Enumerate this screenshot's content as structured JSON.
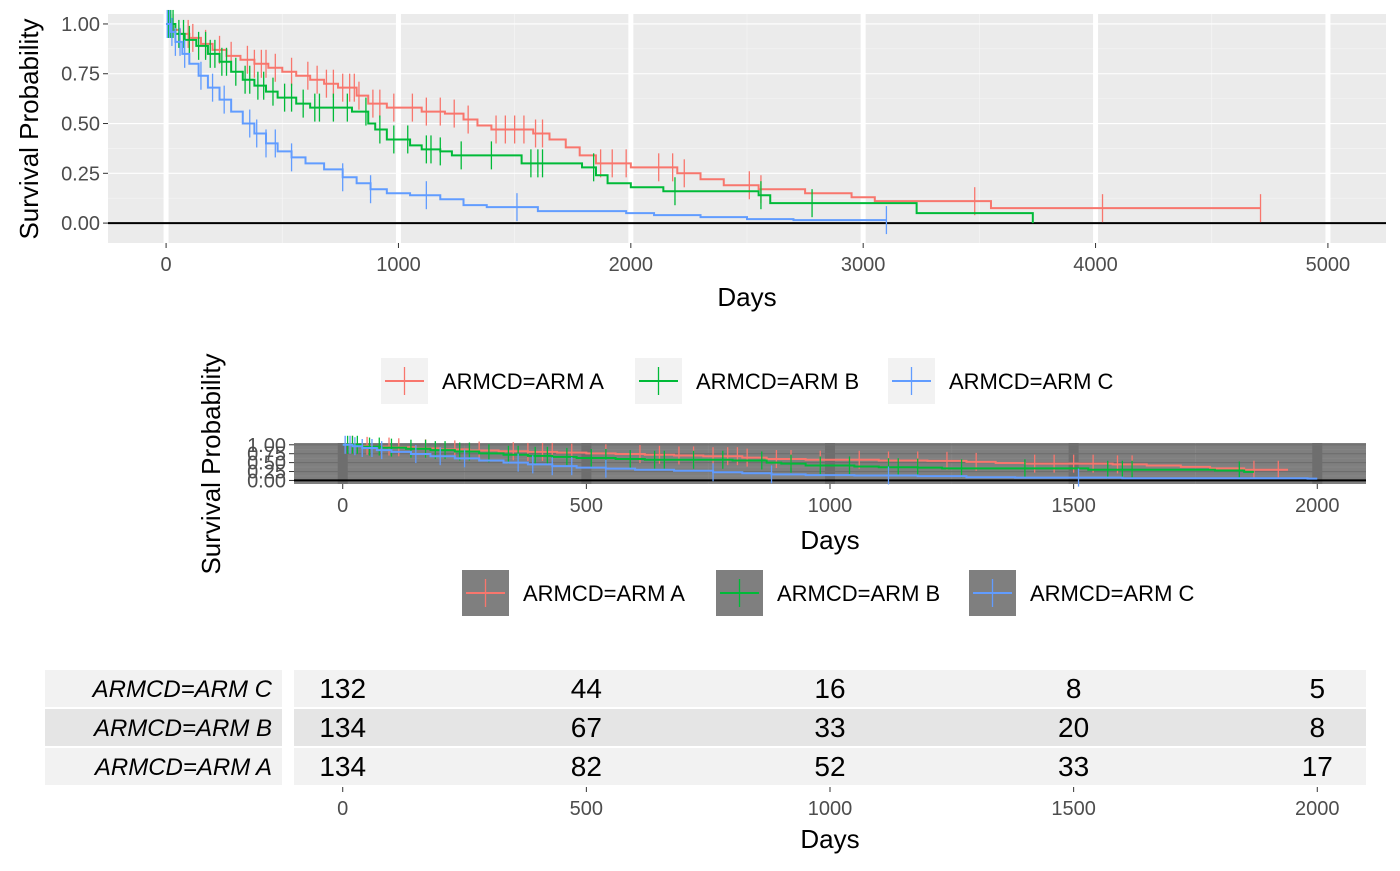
{
  "chart_data": [
    {
      "type": "line",
      "subtype": "kaplan-meier",
      "xlabel": "Days",
      "ylabel": "Survival Probability",
      "xlim": [
        -250,
        5250
      ],
      "ylim": [
        -0.1,
        1.05
      ],
      "xticks": [
        0,
        1000,
        2000,
        3000,
        4000,
        5000
      ],
      "yticks": [
        0.0,
        0.25,
        0.5,
        0.75,
        1.0
      ],
      "ytick_labels": [
        "0.00",
        "0.25",
        "0.50",
        "0.75",
        "1.00"
      ],
      "grid": true,
      "hline": 0,
      "series": [
        {
          "name": "ARMCD=ARM A",
          "color": "#F8766D",
          "steps": [
            [
              0,
              1.0
            ],
            [
              30,
              0.97
            ],
            [
              60,
              0.95
            ],
            [
              100,
              0.93
            ],
            [
              150,
              0.9
            ],
            [
              200,
              0.87
            ],
            [
              260,
              0.84
            ],
            [
              320,
              0.82
            ],
            [
              380,
              0.8
            ],
            [
              440,
              0.78
            ],
            [
              500,
              0.76
            ],
            [
              560,
              0.74
            ],
            [
              620,
              0.72
            ],
            [
              680,
              0.7
            ],
            [
              740,
              0.68
            ],
            [
              820,
              0.64
            ],
            [
              870,
              0.6
            ],
            [
              950,
              0.58
            ],
            [
              1100,
              0.56
            ],
            [
              1200,
              0.55
            ],
            [
              1280,
              0.52
            ],
            [
              1340,
              0.49
            ],
            [
              1400,
              0.47
            ],
            [
              1580,
              0.45
            ],
            [
              1650,
              0.42
            ],
            [
              1720,
              0.38
            ],
            [
              1780,
              0.34
            ],
            [
              1850,
              0.3
            ],
            [
              2000,
              0.28
            ],
            [
              2200,
              0.25
            ],
            [
              2300,
              0.22
            ],
            [
              2400,
              0.19
            ],
            [
              2550,
              0.17
            ],
            [
              2750,
              0.15
            ],
            [
              2950,
              0.13
            ],
            [
              3050,
              0.11
            ],
            [
              3550,
              0.075
            ],
            [
              4710,
              0.075
            ]
          ],
          "censor_x": [
            95,
            115,
            170,
            230,
            280,
            350,
            380,
            410,
            430,
            470,
            540,
            610,
            650,
            690,
            720,
            760,
            790,
            810,
            830,
            890,
            920,
            980,
            1060,
            1120,
            1180,
            1240,
            1300,
            1420,
            1460,
            1500,
            1540,
            1590,
            1620,
            1870,
            1920,
            1980,
            2120,
            2180,
            2230,
            2510,
            2560,
            3480,
            4030,
            4710
          ]
        },
        {
          "name": "ARMCD=ARM B",
          "color": "#00BA38",
          "steps": [
            [
              0,
              1.0
            ],
            [
              40,
              0.95
            ],
            [
              80,
              0.92
            ],
            [
              130,
              0.89
            ],
            [
              180,
              0.85
            ],
            [
              230,
              0.81
            ],
            [
              280,
              0.76
            ],
            [
              330,
              0.72
            ],
            [
              380,
              0.69
            ],
            [
              430,
              0.66
            ],
            [
              480,
              0.63
            ],
            [
              560,
              0.6
            ],
            [
              620,
              0.58
            ],
            [
              800,
              0.56
            ],
            [
              870,
              0.5
            ],
            [
              900,
              0.47
            ],
            [
              950,
              0.42
            ],
            [
              1050,
              0.39
            ],
            [
              1100,
              0.37
            ],
            [
              1180,
              0.36
            ],
            [
              1230,
              0.34
            ],
            [
              1530,
              0.3
            ],
            [
              1790,
              0.28
            ],
            [
              1850,
              0.24
            ],
            [
              1900,
              0.2
            ],
            [
              2000,
              0.18
            ],
            [
              2140,
              0.16
            ],
            [
              2550,
              0.14
            ],
            [
              2600,
              0.1
            ],
            [
              3230,
              0.05
            ],
            [
              3730,
              0.05
            ],
            [
              3730,
              0.0
            ]
          ],
          "censor_x": [
            10,
            20,
            30,
            55,
            75,
            100,
            140,
            170,
            190,
            210,
            240,
            260,
            300,
            340,
            360,
            395,
            420,
            460,
            510,
            540,
            590,
            640,
            660,
            720,
            780,
            860,
            920,
            980,
            1040,
            1120,
            1140,
            1180,
            1270,
            1400,
            1570,
            1600,
            1620,
            1840,
            2190,
            2560,
            2780
          ]
        },
        {
          "name": "ARMCD=ARM C",
          "color": "#619CFF",
          "steps": [
            [
              0,
              1.0
            ],
            [
              20,
              0.96
            ],
            [
              40,
              0.91
            ],
            [
              70,
              0.85
            ],
            [
              100,
              0.8
            ],
            [
              140,
              0.74
            ],
            [
              180,
              0.68
            ],
            [
              230,
              0.62
            ],
            [
              280,
              0.56
            ],
            [
              330,
              0.5
            ],
            [
              380,
              0.45
            ],
            [
              430,
              0.4
            ],
            [
              480,
              0.36
            ],
            [
              540,
              0.33
            ],
            [
              600,
              0.3
            ],
            [
              680,
              0.27
            ],
            [
              760,
              0.23
            ],
            [
              820,
              0.2
            ],
            [
              880,
              0.17
            ],
            [
              950,
              0.15
            ],
            [
              1050,
              0.14
            ],
            [
              1180,
              0.12
            ],
            [
              1280,
              0.09
            ],
            [
              1380,
              0.08
            ],
            [
              1600,
              0.06
            ],
            [
              1980,
              0.05
            ],
            [
              2100,
              0.04
            ],
            [
              2300,
              0.03
            ],
            [
              2500,
              0.02
            ],
            [
              2700,
              0.015
            ],
            [
              3100,
              0.015
            ]
          ],
          "censor_x": [
            5,
            15,
            25,
            40,
            60,
            80,
            150,
            200,
            250,
            360,
            390,
            430,
            470,
            540,
            760,
            880,
            1120,
            1510,
            3100
          ]
        }
      ],
      "legend": {
        "position": "bottom",
        "labels": [
          "ARMCD=ARM A",
          "ARMCD=ARM B",
          "ARMCD=ARM C"
        ]
      }
    },
    {
      "type": "line",
      "subtype": "kaplan-meier",
      "xlabel": "Days",
      "ylabel": "Survival Probability",
      "xlim": [
        -100,
        2100
      ],
      "ylim": [
        -0.1,
        1.05
      ],
      "xticks": [
        0,
        500,
        1000,
        1500,
        2000
      ],
      "yticks": [
        0.0,
        0.25,
        0.5,
        0.75,
        1.0
      ],
      "ytick_labels": [
        "0.00",
        "0.25",
        "0.50",
        "0.75",
        "1.00"
      ],
      "grid": true,
      "hline": 0,
      "series": [
        {
          "name": "ARMCD=ARM A",
          "color": "#F8766D",
          "steps": [
            [
              0,
              1.0
            ],
            [
              30,
              0.97
            ],
            [
              60,
              0.95
            ],
            [
              100,
              0.93
            ],
            [
              150,
              0.9
            ],
            [
              200,
              0.87
            ],
            [
              260,
              0.84
            ],
            [
              320,
              0.82
            ],
            [
              380,
              0.8
            ],
            [
              440,
              0.78
            ],
            [
              500,
              0.76
            ],
            [
              560,
              0.74
            ],
            [
              620,
              0.72
            ],
            [
              680,
              0.7
            ],
            [
              740,
              0.68
            ],
            [
              820,
              0.64
            ],
            [
              870,
              0.6
            ],
            [
              950,
              0.58
            ],
            [
              1100,
              0.56
            ],
            [
              1200,
              0.55
            ],
            [
              1280,
              0.52
            ],
            [
              1340,
              0.49
            ],
            [
              1400,
              0.47
            ],
            [
              1580,
              0.45
            ],
            [
              1650,
              0.42
            ],
            [
              1720,
              0.38
            ],
            [
              1780,
              0.34
            ],
            [
              1850,
              0.3
            ],
            [
              1940,
              0.3
            ]
          ],
          "censor_x": [
            20,
            50,
            95,
            115,
            170,
            230,
            280,
            350,
            380,
            410,
            430,
            470,
            540,
            610,
            650,
            690,
            720,
            760,
            790,
            810,
            830,
            890,
            920,
            980,
            1060,
            1120,
            1180,
            1240,
            1300,
            1420,
            1460,
            1500,
            1540,
            1590,
            1620,
            1870,
            1920
          ]
        },
        {
          "name": "ARMCD=ARM B",
          "color": "#00BA38",
          "steps": [
            [
              0,
              1.0
            ],
            [
              40,
              0.95
            ],
            [
              80,
              0.92
            ],
            [
              130,
              0.89
            ],
            [
              180,
              0.85
            ],
            [
              230,
              0.81
            ],
            [
              280,
              0.76
            ],
            [
              330,
              0.72
            ],
            [
              380,
              0.69
            ],
            [
              430,
              0.66
            ],
            [
              480,
              0.63
            ],
            [
              560,
              0.6
            ],
            [
              620,
              0.58
            ],
            [
              800,
              0.56
            ],
            [
              870,
              0.5
            ],
            [
              900,
              0.47
            ],
            [
              950,
              0.42
            ],
            [
              1050,
              0.39
            ],
            [
              1100,
              0.37
            ],
            [
              1180,
              0.36
            ],
            [
              1230,
              0.34
            ],
            [
              1530,
              0.3
            ],
            [
              1790,
              0.28
            ],
            [
              1850,
              0.24
            ],
            [
              1870,
              0.24
            ]
          ],
          "censor_x": [
            10,
            20,
            30,
            55,
            75,
            100,
            140,
            170,
            190,
            210,
            240,
            260,
            300,
            340,
            360,
            395,
            420,
            460,
            510,
            540,
            590,
            640,
            660,
            720,
            780,
            860,
            920,
            980,
            1040,
            1120,
            1140,
            1180,
            1270,
            1400,
            1570,
            1600,
            1620,
            1840
          ]
        },
        {
          "name": "ARMCD=ARM C",
          "color": "#619CFF",
          "steps": [
            [
              0,
              1.0
            ],
            [
              20,
              0.96
            ],
            [
              40,
              0.91
            ],
            [
              70,
              0.85
            ],
            [
              100,
              0.8
            ],
            [
              140,
              0.74
            ],
            [
              180,
              0.68
            ],
            [
              230,
              0.62
            ],
            [
              280,
              0.56
            ],
            [
              330,
              0.5
            ],
            [
              380,
              0.45
            ],
            [
              430,
              0.4
            ],
            [
              480,
              0.36
            ],
            [
              540,
              0.33
            ],
            [
              600,
              0.3
            ],
            [
              680,
              0.27
            ],
            [
              760,
              0.23
            ],
            [
              820,
              0.2
            ],
            [
              880,
              0.17
            ],
            [
              950,
              0.15
            ],
            [
              1050,
              0.14
            ],
            [
              1180,
              0.12
            ],
            [
              1280,
              0.09
            ],
            [
              1380,
              0.08
            ],
            [
              1600,
              0.06
            ],
            [
              1980,
              0.05
            ],
            [
              2000,
              0.05
            ]
          ],
          "censor_x": [
            5,
            15,
            25,
            40,
            60,
            80,
            150,
            200,
            250,
            360,
            390,
            430,
            470,
            540,
            760,
            880,
            1120,
            1510
          ]
        }
      ],
      "legend": {
        "position": "bottom",
        "labels": [
          "ARMCD=ARM A",
          "ARMCD=ARM B",
          "ARMCD=ARM C"
        ]
      }
    },
    {
      "type": "table",
      "title": "",
      "xlabel": "Days",
      "xlim": [
        -100,
        2100
      ],
      "xticks": [
        0,
        500,
        1000,
        1500,
        2000
      ],
      "columns": [
        0,
        500,
        1000,
        1500,
        2000
      ],
      "rows": [
        {
          "label": "ARMCD=ARM C",
          "values": [
            132,
            44,
            16,
            8,
            5
          ]
        },
        {
          "label": "ARMCD=ARM B",
          "values": [
            134,
            67,
            33,
            20,
            8
          ]
        },
        {
          "label": "ARMCD=ARM A",
          "values": [
            134,
            82,
            52,
            33,
            17
          ]
        }
      ]
    }
  ]
}
